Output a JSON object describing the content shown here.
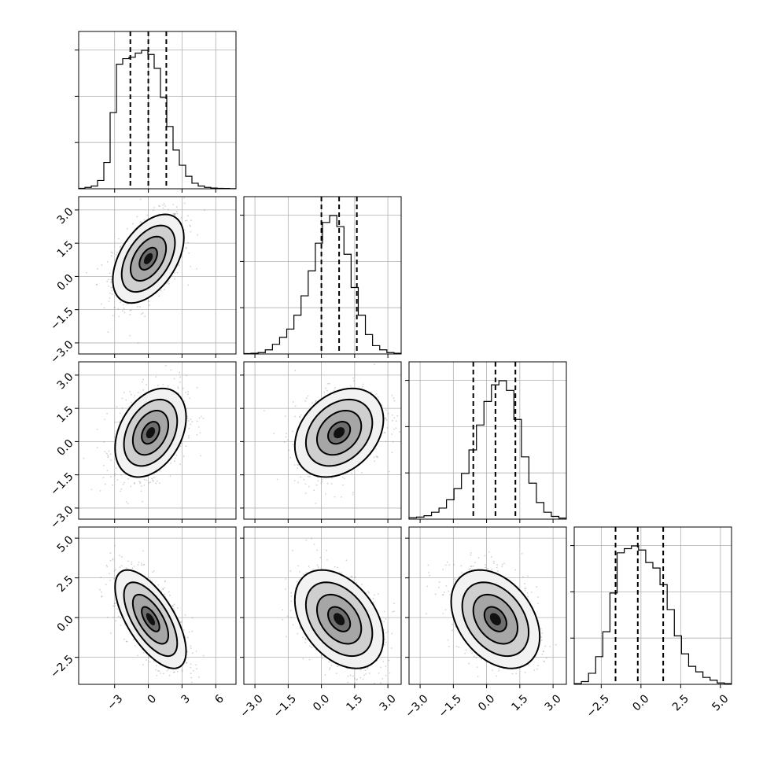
{
  "chart_data": {
    "type": "corner",
    "description_free": true,
    "variables": [
      {
        "id": "p0",
        "range": [
          -6.2,
          7.8
        ],
        "ticks": [
          -3,
          0,
          3,
          6
        ],
        "tick_labels": [
          "−3",
          "0",
          "3",
          "6"
        ],
        "quantiles": [
          -1.6,
          0.0,
          1.6
        ],
        "hist": [
          0.003,
          0.01,
          0.02,
          0.06,
          0.19,
          0.55,
          0.9,
          0.94,
          0.95,
          0.98,
          1.0,
          0.97,
          0.87,
          0.66,
          0.45,
          0.28,
          0.17,
          0.09,
          0.04,
          0.02,
          0.01,
          0.005,
          0.003,
          0.002,
          0.001
        ]
      },
      {
        "id": "p1",
        "range": [
          -3.5,
          3.6
        ],
        "ticks": [
          -3.0,
          -1.5,
          0.0,
          1.5,
          3.0
        ],
        "tick_labels": [
          "−3.0",
          "−1.5",
          "0.0",
          "1.5",
          "3.0"
        ],
        "quantiles": [
          0.0,
          0.8,
          1.6
        ],
        "hist": [
          0.003,
          0.005,
          0.01,
          0.03,
          0.07,
          0.12,
          0.18,
          0.28,
          0.42,
          0.6,
          0.8,
          0.95,
          1.0,
          0.92,
          0.72,
          0.48,
          0.28,
          0.14,
          0.06,
          0.03,
          0.01,
          0.005
        ]
      },
      {
        "id": "p2",
        "range": [
          -3.5,
          3.6
        ],
        "ticks": [
          -3.0,
          -1.5,
          0.0,
          1.5,
          3.0
        ],
        "tick_labels": [
          "−3.0",
          "−1.5",
          "0.0",
          "1.5",
          "3.0"
        ],
        "quantiles": [
          -0.6,
          0.4,
          1.3
        ],
        "hist": [
          0.01,
          0.015,
          0.025,
          0.05,
          0.08,
          0.14,
          0.22,
          0.33,
          0.5,
          0.68,
          0.85,
          0.97,
          1.0,
          0.93,
          0.72,
          0.45,
          0.26,
          0.12,
          0.05,
          0.02,
          0.008
        ]
      },
      {
        "id": "p3",
        "range": [
          -4.2,
          5.7
        ],
        "ticks": [
          -2.5,
          0.0,
          2.5,
          5.0
        ],
        "tick_labels": [
          "−2.5",
          "0.0",
          "2.5",
          "5.0"
        ],
        "quantiles": [
          -1.6,
          -0.2,
          1.4
        ],
        "hist": [
          0.005,
          0.02,
          0.08,
          0.2,
          0.38,
          0.66,
          0.95,
          0.98,
          1.0,
          0.97,
          0.88,
          0.84,
          0.72,
          0.54,
          0.35,
          0.22,
          0.13,
          0.09,
          0.05,
          0.03,
          0.01,
          0.005
        ]
      }
    ],
    "pairs": [
      {
        "x": 0,
        "y": 1,
        "center": [
          0.0,
          0.8
        ],
        "cov": [
          [
            2.5,
            0.75
          ],
          [
            0.75,
            1.0
          ]
        ]
      },
      {
        "x": 0,
        "y": 2,
        "center": [
          0.2,
          0.4
        ],
        "cov": [
          [
            2.5,
            0.55
          ],
          [
            0.55,
            1.0
          ]
        ]
      },
      {
        "x": 1,
        "y": 2,
        "center": [
          0.8,
          0.4
        ],
        "cov": [
          [
            1.0,
            0.3
          ],
          [
            0.3,
            1.0
          ]
        ]
      },
      {
        "x": 0,
        "y": 3,
        "center": [
          0.2,
          -0.1
        ],
        "cov": [
          [
            2.5,
            -1.6
          ],
          [
            -1.6,
            2.4
          ]
        ]
      },
      {
        "x": 1,
        "y": 3,
        "center": [
          0.8,
          -0.1
        ],
        "cov": [
          [
            1.0,
            -0.6
          ],
          [
            -0.6,
            2.4
          ]
        ]
      },
      {
        "x": 2,
        "y": 3,
        "center": [
          0.4,
          -0.1
        ],
        "cov": [
          [
            1.0,
            -0.55
          ],
          [
            -0.55,
            2.4
          ]
        ]
      }
    ],
    "contour_levels_sigma": [
      0.5,
      1.0,
      1.5,
      2.0
    ],
    "grid": true,
    "title": "",
    "legend": "none"
  }
}
